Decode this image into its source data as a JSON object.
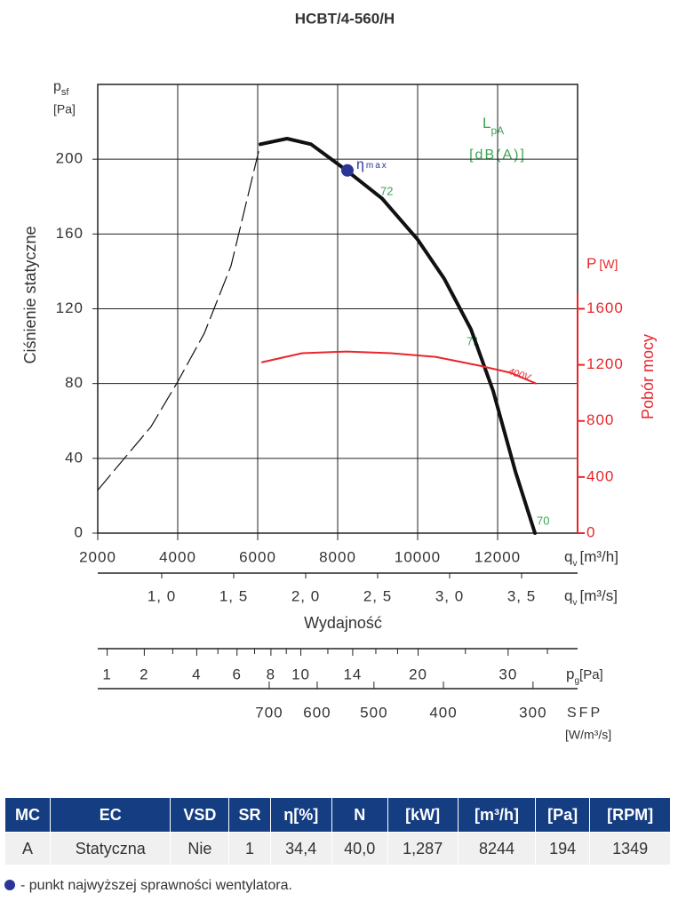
{
  "chart_data": {
    "type": "fan-curve",
    "title": "HCBT/4-560/H",
    "y_symbol": "p",
    "y_sub": "sf",
    "y_unit": "[Pa]",
    "ylabel": "Ciśnienie statyczne",
    "lpa_symbol": "L",
    "lpa_sub": "pA",
    "lpa_unit": "[dB(A)]",
    "y2_symbol": "P",
    "y2_unit": "[W]",
    "y2label": "Pobór mocy",
    "x_symbol": "q",
    "x_sub": "v",
    "x_unit": "[m³/h]",
    "x2_symbol": "q",
    "x2_sub": "v",
    "x2_unit": "[m³/s]",
    "xlabel": "Wydajność",
    "pg_symbol": "p",
    "pg_sub": "g",
    "pg_unit": "[Pa]",
    "sfp_symbol": "SFP",
    "sfp_unit": "[W/m³/s]",
    "xlim": [
      2000,
      14000
    ],
    "xticks": [
      2000,
      4000,
      6000,
      8000,
      10000,
      12000
    ],
    "ylim": [
      0,
      240
    ],
    "yticks": [
      0,
      40,
      80,
      120,
      160,
      200
    ],
    "y2lim": [
      0,
      3200
    ],
    "y2ticks": [
      0,
      400,
      800,
      1200,
      1600
    ],
    "x2lim": [
      0.5556,
      3.8889
    ],
    "x2ticks": [
      {
        "value": 1.0,
        "label": "1, 0"
      },
      {
        "value": 1.5,
        "label": "1, 5"
      },
      {
        "value": 2.0,
        "label": "2, 0"
      },
      {
        "value": 2.5,
        "label": "2, 5"
      },
      {
        "value": 3.0,
        "label": "3, 0"
      },
      {
        "value": 3.5,
        "label": "3, 5"
      }
    ],
    "pg_scale": "sqrt",
    "pg_lim": [
      0.8,
      39.1
    ],
    "pg_ticks": [
      1,
      2,
      4,
      6,
      8,
      10,
      14,
      20,
      30
    ],
    "pg_minor_ticks": [
      3,
      5,
      7,
      9,
      12,
      16,
      18,
      25,
      35
    ],
    "sfp_scale": "log",
    "sfp_lim": [
      1214,
      260
    ],
    "sfp_ticks": [
      700,
      600,
      500,
      400,
      300
    ],
    "grid": true,
    "series": [
      {
        "color": "#111111",
        "style": "solid",
        "width": 4,
        "x": [
          6067,
          6733,
          7333,
          8222,
          9111,
          10000,
          10667,
          11333,
          11889,
          12444,
          12933
        ],
        "values": [
          208,
          211,
          208,
          194,
          179,
          157,
          136,
          109,
          76,
          33,
          0
        ]
      },
      {
        "color": "#111111",
        "style": "dashed",
        "width": 1.2,
        "x": [
          2000,
          2667,
          3333,
          4000,
          4667,
          5333,
          6067
        ],
        "values": [
          23,
          40,
          57,
          81,
          107,
          143,
          208
        ]
      },
      {
        "color": "#e8262b",
        "style": "solid",
        "width": 2,
        "axis": "y2",
        "x": [
          6111,
          7111,
          8222,
          9333,
          10444,
          11556,
          12333,
          12956
        ],
        "values": [
          1219,
          1283,
          1295,
          1283,
          1257,
          1194,
          1143,
          1067
        ]
      }
    ],
    "eta_max": {
      "x": 8244,
      "y": 194,
      "symbol": "η",
      "sub": "max",
      "color": "#2b3597"
    },
    "annotations": [
      "72",
      "71",
      "70",
      "400V"
    ]
  },
  "table": {
    "header": [
      "MC",
      "EC",
      "VSD",
      "SR",
      "η[%]",
      "N",
      "[kW]",
      "[m³/h]",
      "[Pa]",
      "[RPM]"
    ],
    "rows": [
      [
        "A",
        "Statyczna",
        "Nie",
        "1",
        "34,4",
        "40,0",
        "1,287",
        "8244",
        "194",
        "1349"
      ]
    ]
  },
  "note": "- punkt najwyższej sprawności wentylatora."
}
